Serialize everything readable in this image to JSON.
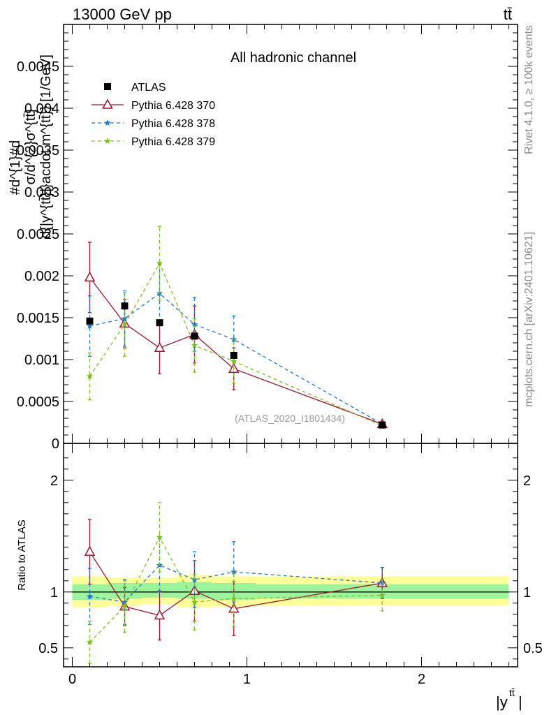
{
  "header": {
    "energy_label": "13000 GeV pp",
    "process_label": "tt̄",
    "side_label_rivet": "Rivet 4.1.0, ≥ 100k events",
    "side_label_mcplots": "mcplots.cern.ch [arXiv:2401.10621]"
  },
  "colors": {
    "atlas": "#000000",
    "p370": "#a5102b",
    "p378": "#1f78d4",
    "p379": "#7fbf1f",
    "band_inner": "#9cf59c",
    "band_outer": "#ffff99"
  },
  "chart_data": [
    {
      "type": "line",
      "title": "All hadronic channel",
      "watermark": "(ATLAS_2020_I1801434)",
      "ylabel": "#d^{1}#d σ/d^{2}σ^{tt̄}/d{|y^{tt̄}|}acdot m^{tt̄}} [1/GeV]",
      "ylabel_top": "#d^{1}#d",
      "ylabel_frac": "σ/d^{2}σ^{tt̄}",
      "ylabel_bottom": "d{|y^{tt̄}|}acdot m^{tt̄}} [1/GeV]",
      "ylim": [
        0,
        0.005
      ],
      "yticks": [
        0,
        0.0005,
        0.001,
        0.0015,
        0.002,
        0.0025,
        0.003,
        0.0035,
        0.004,
        0.0045
      ],
      "ytick_labels": [
        "0",
        "0.0005",
        "0.001",
        "0.0015",
        "0.002",
        "0.0025",
        "0.003",
        "0.0035",
        "0.004",
        "0.0045"
      ],
      "xlim": [
        -0.05,
        2.55
      ],
      "x": [
        0.1,
        0.3,
        0.5,
        0.7,
        0.925,
        1.775
      ],
      "series": [
        {
          "name": "ATLAS",
          "key": "atlas",
          "marker": "square",
          "values": [
            0.00146,
            0.00164,
            0.00144,
            0.00128,
            0.00105,
            0.00022
          ],
          "errors": [
            4e-05,
            5e-05,
            4e-05,
            4e-05,
            3e-05,
            1e-05
          ]
        },
        {
          "name": "Pythia 6.428 370",
          "key": "p370",
          "marker": "triangle",
          "values": [
            0.00198,
            0.00143,
            0.00114,
            0.0013,
            0.00089,
            0.00023
          ],
          "errors": [
            0.00042,
            0.00029,
            0.00031,
            0.00034,
            0.00025,
            3e-05
          ]
        },
        {
          "name": "Pythia 6.428 378",
          "key": "p378",
          "marker": "star",
          "values": [
            0.0014,
            0.00149,
            0.00179,
            0.00142,
            0.00124,
            0.00023
          ],
          "errors": [
            0.00036,
            0.00033,
            0.00035,
            0.00032,
            0.00028,
            3e-05
          ]
        },
        {
          "name": "Pythia 6.428 379",
          "key": "p379",
          "marker": "star",
          "values": [
            0.0008,
            0.00142,
            0.00215,
            0.00117,
            0.00098,
            0.00021
          ],
          "errors": [
            0.00028,
            0.00038,
            0.00044,
            0.00032,
            0.00026,
            3e-05
          ]
        }
      ]
    },
    {
      "type": "line",
      "ylabel": "Ratio to ATLAS",
      "xlabel": "|y^{tt̄}|",
      "xlabel_main": "|y",
      "xlabel_sup": "tt̄",
      "xlabel_close": "|",
      "ylim": [
        0.33,
        2.33
      ],
      "yticks": [
        0.5,
        1,
        2
      ],
      "ytick_labels": [
        "0.5",
        "1",
        "2"
      ],
      "xlim": [
        -0.05,
        2.55
      ],
      "xticks": [
        0,
        1,
        2
      ],
      "xtick_labels": [
        "0",
        "1",
        "2"
      ],
      "x": [
        0.1,
        0.3,
        0.5,
        0.7,
        0.925,
        1.775
      ],
      "bins": [
        [
          0,
          0.2
        ],
        [
          0.2,
          0.4
        ],
        [
          0.4,
          0.6
        ],
        [
          0.6,
          0.8
        ],
        [
          0.8,
          1.05
        ],
        [
          1.05,
          2.5
        ]
      ],
      "band_inner": [
        [
          0.93,
          1.07
        ],
        [
          0.94,
          1.08
        ],
        [
          0.95,
          1.08
        ],
        [
          0.94,
          1.09
        ],
        [
          0.93,
          1.08
        ],
        [
          0.94,
          1.07
        ]
      ],
      "band_outer": [
        [
          0.86,
          1.14
        ],
        [
          0.88,
          1.13
        ],
        [
          0.89,
          1.13
        ],
        [
          0.86,
          1.15
        ],
        [
          0.87,
          1.14
        ],
        [
          0.88,
          1.14
        ]
      ],
      "series": [
        {
          "name": "Pythia 6.428 370",
          "key": "p370",
          "marker": "triangle",
          "values": [
            1.36,
            0.87,
            0.79,
            1.01,
            0.85,
            1.08
          ],
          "errors": [
            0.29,
            0.17,
            0.22,
            0.27,
            0.24,
            0.14
          ]
        },
        {
          "name": "Pythia 6.428 378",
          "key": "p378",
          "marker": "star",
          "values": [
            0.96,
            0.91,
            1.24,
            1.11,
            1.18,
            1.08
          ],
          "errors": [
            0.25,
            0.2,
            0.24,
            0.25,
            0.27,
            0.14
          ]
        },
        {
          "name": "Pythia 6.428 379",
          "key": "p379",
          "marker": "star",
          "values": [
            0.55,
            0.87,
            1.49,
            0.91,
            0.94,
            0.97
          ],
          "errors": [
            0.19,
            0.23,
            0.31,
            0.25,
            0.25,
            0.14
          ]
        }
      ]
    }
  ]
}
